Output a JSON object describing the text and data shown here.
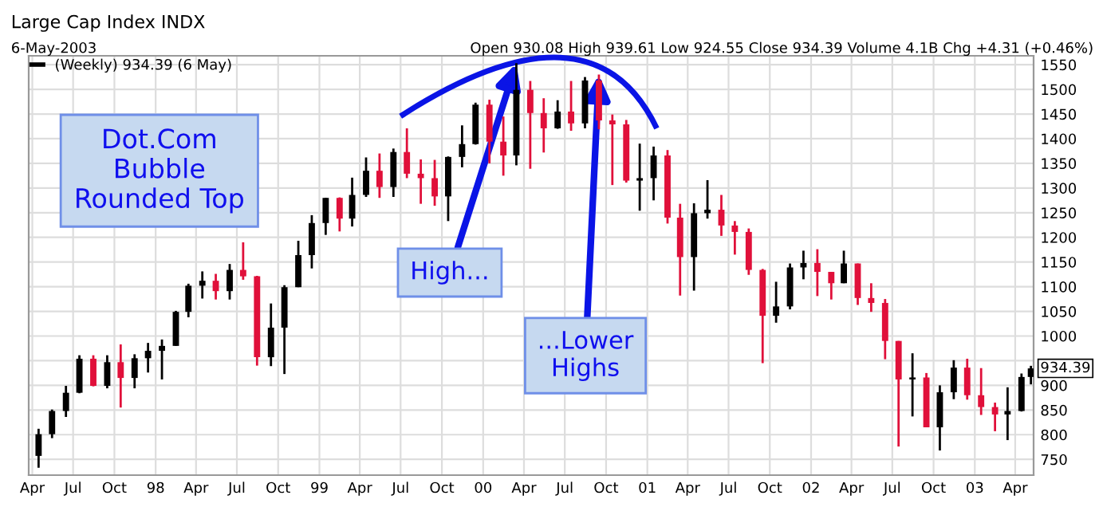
{
  "chart_data": {
    "type": "candlestick",
    "title": "Large Cap Index INDX",
    "subtitle": "6-May-2003",
    "x": [
      "1997-04-15",
      "1997-05-15",
      "1997-06-15",
      "1997-07-15",
      "1997-08-15",
      "1997-09-15",
      "1997-10-15",
      "1997-11-15",
      "1997-12-15",
      "1998-01-15",
      "1998-02-15",
      "1998-03-15",
      "1998-04-15",
      "1998-05-15",
      "1998-06-15",
      "1998-07-15",
      "1998-08-15",
      "1998-09-15",
      "1998-10-15",
      "1998-11-15",
      "1998-12-15",
      "1999-01-15",
      "1999-02-15",
      "1999-03-15",
      "1999-04-15",
      "1999-05-15",
      "1999-06-15",
      "1999-07-15",
      "1999-08-15",
      "1999-09-15",
      "1999-10-15",
      "1999-11-15",
      "1999-12-15",
      "2000-01-15",
      "2000-02-15",
      "2000-03-15",
      "2000-04-15",
      "2000-05-15",
      "2000-06-15",
      "2000-07-15",
      "2000-08-15",
      "2000-09-15",
      "2000-10-15",
      "2000-11-15",
      "2000-12-15",
      "2001-01-15",
      "2001-02-15",
      "2001-03-15",
      "2001-04-15",
      "2001-05-15",
      "2001-06-15",
      "2001-07-15",
      "2001-08-15",
      "2001-09-15",
      "2001-10-15",
      "2001-11-15",
      "2001-12-15",
      "2002-01-15",
      "2002-02-15",
      "2002-03-15",
      "2002-04-15",
      "2002-05-15",
      "2002-06-15",
      "2002-07-15",
      "2002-08-15",
      "2002-09-15",
      "2002-10-15",
      "2002-11-15",
      "2002-12-15",
      "2003-01-15",
      "2003-02-15",
      "2003-03-15",
      "2003-04-15",
      "2003-05-06"
    ],
    "series": [
      {
        "name": "(Weekly) 934.39 (6 May)",
        "ohlc": [
          [
            757,
            812,
            733,
            801
          ],
          [
            801,
            851,
            793,
            848
          ],
          [
            848,
            899,
            836,
            885
          ],
          [
            885,
            961,
            884,
            954
          ],
          [
            954,
            961,
            898,
            899
          ],
          [
            899,
            961,
            894,
            947
          ],
          [
            947,
            983,
            855,
            915
          ],
          [
            915,
            963,
            894,
            955
          ],
          [
            955,
            986,
            926,
            970
          ],
          [
            970,
            993,
            912,
            980
          ],
          [
            980,
            1051,
            980,
            1049
          ],
          [
            1049,
            1106,
            1038,
            1102
          ],
          [
            1102,
            1131,
            1076,
            1112
          ],
          [
            1112,
            1126,
            1074,
            1091
          ],
          [
            1091,
            1146,
            1074,
            1134
          ],
          [
            1134,
            1190,
            1114,
            1121
          ],
          [
            1121,
            1122,
            940,
            957
          ],
          [
            957,
            1066,
            939,
            1017
          ],
          [
            1017,
            1103,
            923,
            1099
          ],
          [
            1099,
            1193,
            1099,
            1164
          ],
          [
            1164,
            1245,
            1137,
            1229
          ],
          [
            1229,
            1280,
            1205,
            1280
          ],
          [
            1280,
            1281,
            1212,
            1238
          ],
          [
            1238,
            1321,
            1222,
            1286
          ],
          [
            1286,
            1362,
            1282,
            1335
          ],
          [
            1335,
            1370,
            1280,
            1302
          ],
          [
            1302,
            1380,
            1282,
            1373
          ],
          [
            1373,
            1421,
            1320,
            1329
          ],
          [
            1329,
            1358,
            1268,
            1320
          ],
          [
            1320,
            1357,
            1264,
            1283
          ],
          [
            1283,
            1364,
            1233,
            1363
          ],
          [
            1363,
            1427,
            1342,
            1389
          ],
          [
            1389,
            1473,
            1388,
            1469
          ],
          [
            1469,
            1479,
            1350,
            1394
          ],
          [
            1394,
            1445,
            1325,
            1366
          ],
          [
            1366,
            1553,
            1346,
            1499
          ],
          [
            1499,
            1517,
            1339,
            1452
          ],
          [
            1452,
            1482,
            1372,
            1421
          ],
          [
            1421,
            1478,
            1420,
            1455
          ],
          [
            1455,
            1517,
            1416,
            1431
          ],
          [
            1431,
            1525,
            1421,
            1518
          ],
          [
            1518,
            1530,
            1419,
            1437
          ],
          [
            1437,
            1449,
            1306,
            1429
          ],
          [
            1429,
            1438,
            1311,
            1315
          ],
          [
            1315,
            1390,
            1254,
            1320
          ],
          [
            1320,
            1384,
            1275,
            1366
          ],
          [
            1366,
            1377,
            1228,
            1240
          ],
          [
            1240,
            1268,
            1082,
            1160
          ],
          [
            1160,
            1269,
            1092,
            1249
          ],
          [
            1249,
            1316,
            1238,
            1256
          ],
          [
            1256,
            1286,
            1203,
            1224
          ],
          [
            1224,
            1233,
            1165,
            1211
          ],
          [
            1211,
            1218,
            1124,
            1134
          ],
          [
            1134,
            1136,
            945,
            1041
          ],
          [
            1041,
            1110,
            1027,
            1060
          ],
          [
            1060,
            1147,
            1054,
            1139
          ],
          [
            1139,
            1173,
            1115,
            1148
          ],
          [
            1148,
            1176,
            1081,
            1130
          ],
          [
            1130,
            1130,
            1074,
            1107
          ],
          [
            1107,
            1173,
            1107,
            1147
          ],
          [
            1147,
            1147,
            1063,
            1077
          ],
          [
            1077,
            1107,
            1049,
            1067
          ],
          [
            1067,
            1075,
            953,
            990
          ],
          [
            990,
            990,
            776,
            912
          ],
          [
            912,
            965,
            837,
            916
          ],
          [
            916,
            925,
            815,
            815
          ],
          [
            815,
            900,
            768,
            886
          ],
          [
            886,
            951,
            872,
            936
          ],
          [
            936,
            954,
            871,
            880
          ],
          [
            880,
            935,
            840,
            856
          ],
          [
            856,
            865,
            807,
            841
          ],
          [
            841,
            896,
            789,
            848
          ],
          [
            848,
            924,
            847,
            917
          ],
          [
            917,
            939.61,
            902,
            934.39
          ]
        ],
        "colors": [
          "#000000",
          "#000000",
          "#000000",
          "#000000",
          "#e0103a",
          "#000000",
          "#e0103a",
          "#000000",
          "#000000",
          "#000000",
          "#000000",
          "#000000",
          "#000000",
          "#e0103a",
          "#000000",
          "#e0103a",
          "#e0103a",
          "#000000",
          "#000000",
          "#000000",
          "#000000",
          "#000000",
          "#e0103a",
          "#000000",
          "#000000",
          "#e0103a",
          "#000000",
          "#e0103a",
          "#e0103a",
          "#e0103a",
          "#000000",
          "#000000",
          "#000000",
          "#e0103a",
          "#e0103a",
          "#000000",
          "#e0103a",
          "#e0103a",
          "#000000",
          "#e0103a",
          "#000000",
          "#e0103a",
          "#e0103a",
          "#e0103a",
          "#000000",
          "#000000",
          "#e0103a",
          "#e0103a",
          "#000000",
          "#000000",
          "#e0103a",
          "#e0103a",
          "#e0103a",
          "#e0103a",
          "#000000",
          "#000000",
          "#000000",
          "#e0103a",
          "#e0103a",
          "#000000",
          "#e0103a",
          "#e0103a",
          "#e0103a",
          "#e0103a",
          "#000000",
          "#e0103a",
          "#000000",
          "#000000",
          "#e0103a",
          "#e0103a",
          "#e0103a",
          "#000000",
          "#000000",
          "#000000"
        ]
      }
    ],
    "xlim": [
      "1997-03-24",
      "2003-05-12"
    ],
    "xticks": [
      {
        "value": "1997-04-01",
        "label": "Apr"
      },
      {
        "value": "1997-07-01",
        "label": "Jul"
      },
      {
        "value": "1997-10-01",
        "label": "Oct"
      },
      {
        "value": "1998-01-01",
        "label": "98"
      },
      {
        "value": "1998-04-01",
        "label": "Apr"
      },
      {
        "value": "1998-07-01",
        "label": "Jul"
      },
      {
        "value": "1998-10-01",
        "label": "Oct"
      },
      {
        "value": "1999-01-01",
        "label": "99"
      },
      {
        "value": "1999-04-01",
        "label": "Apr"
      },
      {
        "value": "1999-07-01",
        "label": "Jul"
      },
      {
        "value": "1999-10-01",
        "label": "Oct"
      },
      {
        "value": "2000-01-01",
        "label": "00"
      },
      {
        "value": "2000-04-01",
        "label": "Apr"
      },
      {
        "value": "2000-07-01",
        "label": "Jul"
      },
      {
        "value": "2000-10-01",
        "label": "Oct"
      },
      {
        "value": "2001-01-01",
        "label": "01"
      },
      {
        "value": "2001-04-01",
        "label": "Apr"
      },
      {
        "value": "2001-07-01",
        "label": "Jul"
      },
      {
        "value": "2001-10-01",
        "label": "Oct"
      },
      {
        "value": "2002-01-01",
        "label": "02"
      },
      {
        "value": "2002-04-01",
        "label": "Apr"
      },
      {
        "value": "2002-07-01",
        "label": "Jul"
      },
      {
        "value": "2002-10-01",
        "label": "Oct"
      },
      {
        "value": "2003-01-01",
        "label": "03"
      },
      {
        "value": "2003-04-01",
        "label": "Apr"
      }
    ],
    "ylim": [
      718,
      1568
    ],
    "yticks": [
      750,
      800,
      850,
      900,
      {
        "value": 950,
        "label": null
      },
      1000,
      1050,
      1100,
      1150,
      1200,
      1250,
      1300,
      1350,
      1400,
      1450,
      1500,
      1550
    ],
    "grid": true,
    "legend": "top left",
    "annotations": [
      "Open 930.08 High 939.61 Low 924.55 Close 934.39 Volume 4.1B Chg +4.31 (+0.46%)",
      "Dot.Com\nBubble\nRounded Top",
      {
        "text": "High...",
        "x": "2000-03-15",
        "y": 1553
      },
      {
        "text": "...Lower\nHighs",
        "x": "2000-09-15",
        "y": 1530
      },
      {
        "text": "934.39",
        "x": "2003-05-06",
        "y": 934.39
      }
    ]
  }
}
